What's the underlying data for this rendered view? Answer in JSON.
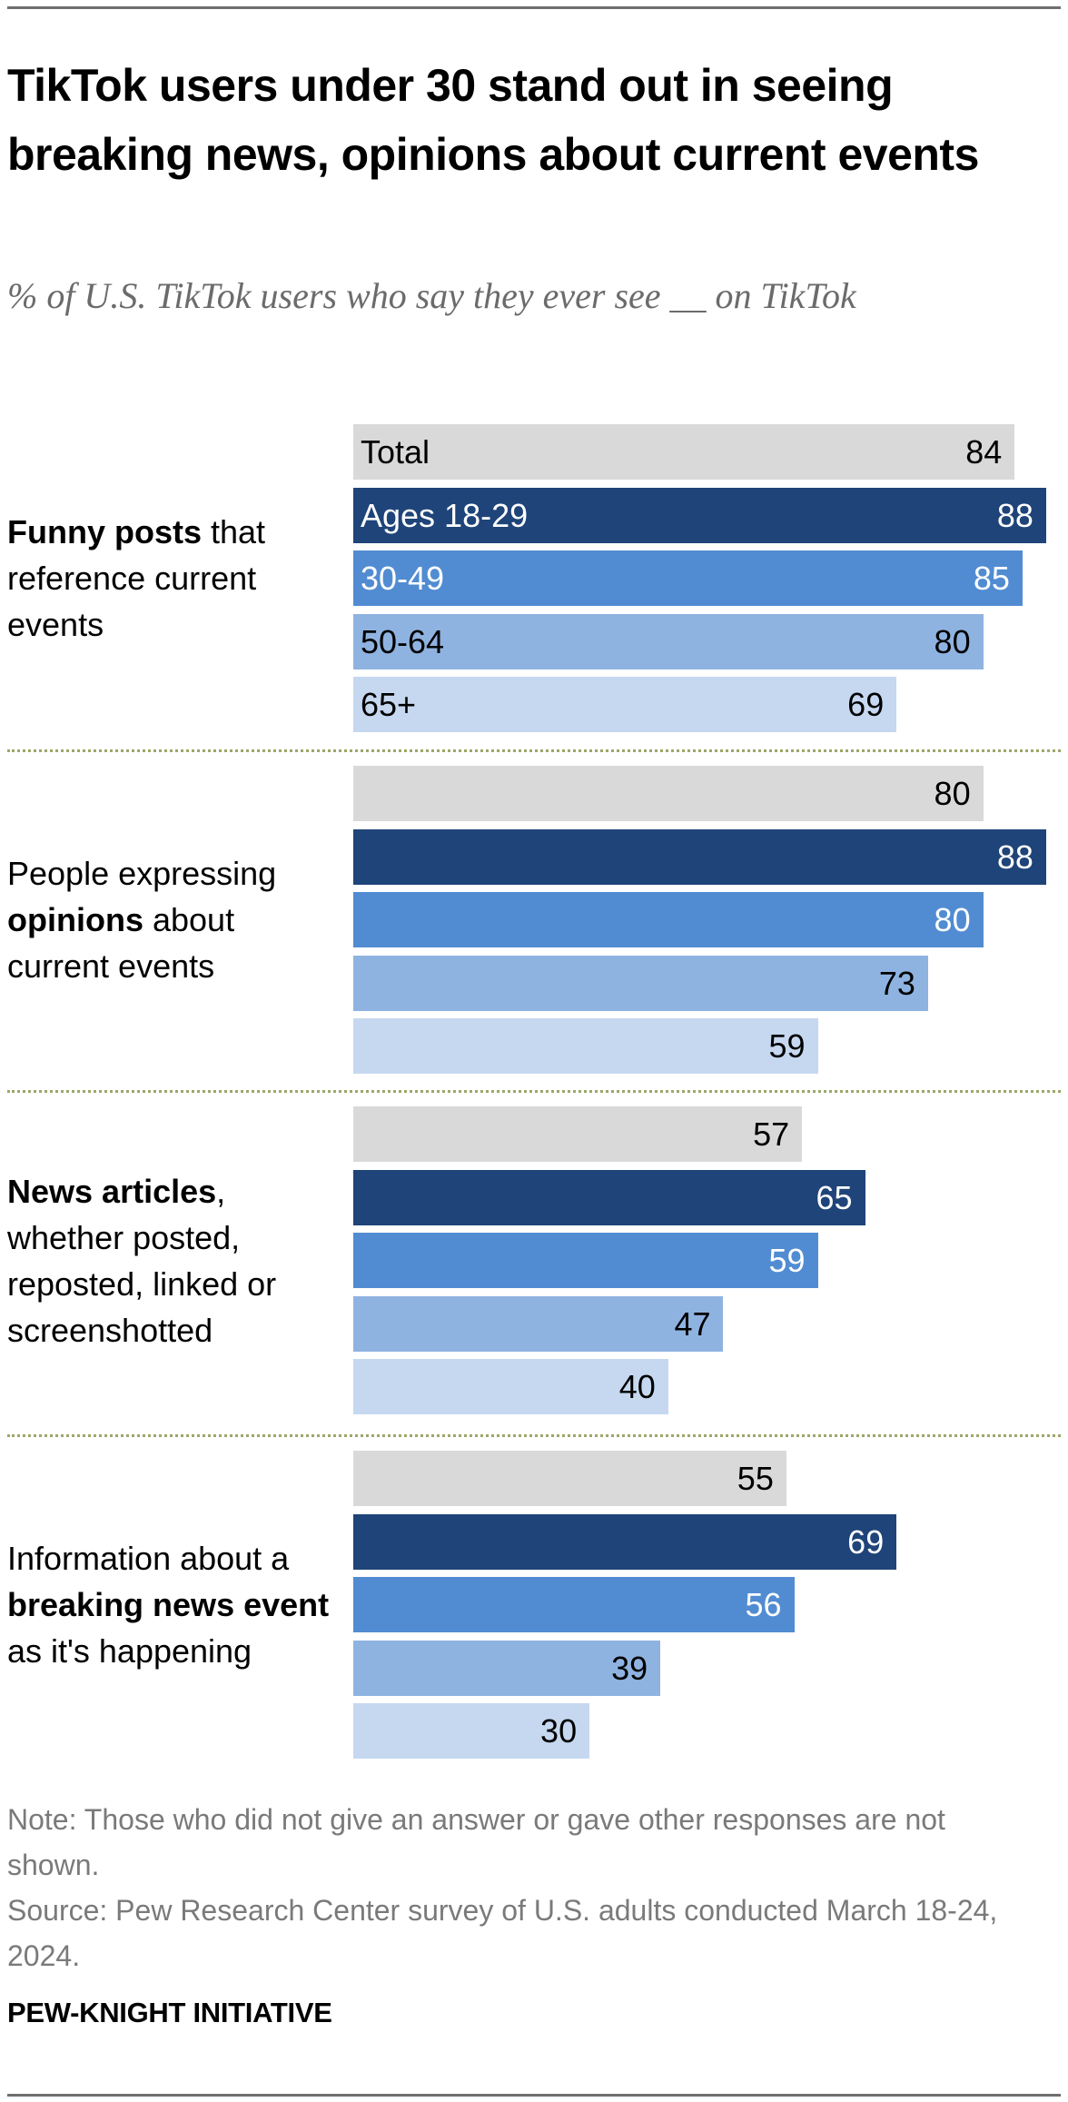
{
  "header": {
    "title": "TikTok users under 30 stand out in seeing breaking news, opinions about current events",
    "subtitle": "% of U.S. TikTok users who say they ever see __ on TikTok"
  },
  "colors": {
    "Total": "#d9d9d9",
    "Ages 18-29": "#1f4479",
    "30-49": "#518cd2",
    "50-64": "#8fb3e1",
    "65+": "#c6d8f0",
    "separator": "#9aa86a"
  },
  "chart_data": {
    "type": "bar",
    "orientation": "horizontal",
    "title": "TikTok users under 30 stand out in seeing breaking news, opinions about current events",
    "subtitle": "% of U.S. TikTok users who say they ever see __ on TikTok",
    "xlabel": "",
    "ylabel": "",
    "xlim": [
      0,
      100
    ],
    "grid": false,
    "series_names": [
      "Total",
      "Ages 18-29",
      "30-49",
      "50-64",
      "65+"
    ],
    "groups": [
      {
        "label_parts": [
          {
            "text": "Funny posts",
            "bold": true
          },
          {
            "text": " that reference current events",
            "bold": false
          }
        ],
        "label": "Funny posts that reference current events",
        "values": [
          84,
          88,
          85,
          80,
          69
        ],
        "show_categories": true
      },
      {
        "label_parts": [
          {
            "text": "People expressing ",
            "bold": false
          },
          {
            "text": "opinions",
            "bold": true
          },
          {
            "text": " about current events",
            "bold": false
          }
        ],
        "label": "People expressing opinions about current events",
        "values": [
          80,
          88,
          80,
          73,
          59
        ],
        "show_categories": false
      },
      {
        "label_parts": [
          {
            "text": "News articles",
            "bold": true
          },
          {
            "text": ", whether posted, reposted, linked or screenshotted",
            "bold": false
          }
        ],
        "label": "News articles, whether posted, reposted, linked or screenshotted",
        "values": [
          57,
          65,
          59,
          47,
          40
        ],
        "show_categories": false
      },
      {
        "label_parts": [
          {
            "text": "Information about a ",
            "bold": false
          },
          {
            "text": "breaking news event",
            "bold": true
          },
          {
            "text": " as it's happening",
            "bold": false
          }
        ],
        "label": "Information about a breaking news event as it's happening",
        "values": [
          55,
          69,
          56,
          39,
          30
        ],
        "show_categories": false
      }
    ]
  },
  "footer": {
    "note": "Note: Those who did not give an answer or gave other responses are not shown.",
    "source": "Source: Pew Research Center survey of U.S. adults conducted March 18-24, 2024.",
    "brand": "PEW-KNIGHT INITIATIVE"
  }
}
